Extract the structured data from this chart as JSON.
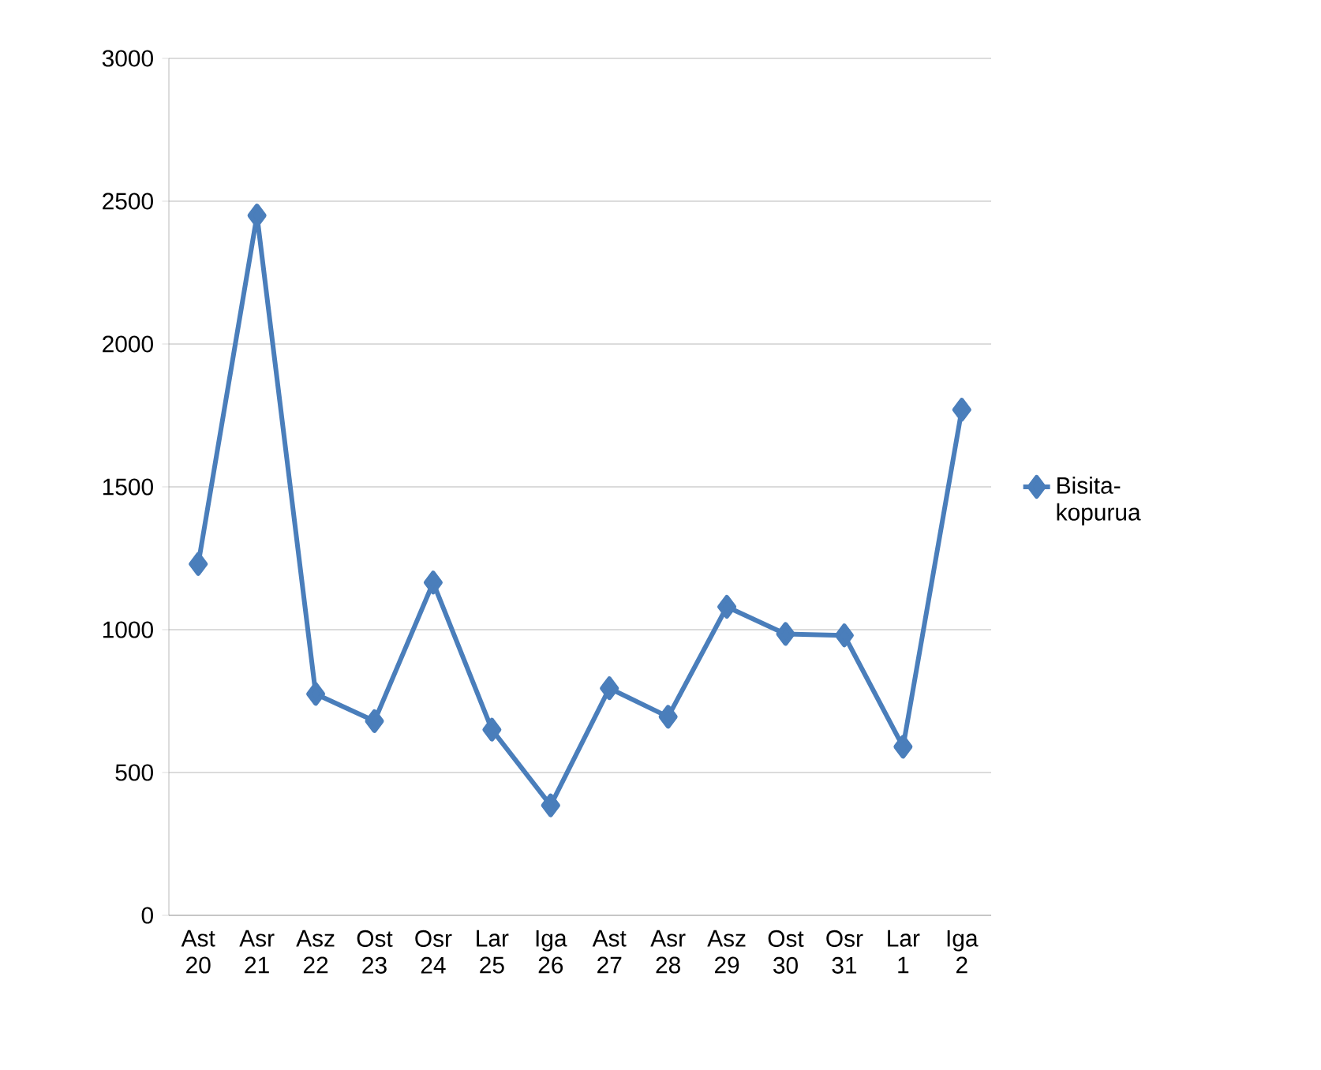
{
  "chart_data": {
    "type": "line",
    "categories": [
      "Ast 20",
      "Asr 21",
      "Asz 22",
      "Ost 23",
      "Osr 24",
      "Lar 25",
      "Iga 26",
      "Ast 27",
      "Asr 28",
      "Asz 29",
      "Ost 30",
      "Osr 31",
      "Lar 1",
      "Iga 2"
    ],
    "series": [
      {
        "name": "Bisita-kopurua",
        "color": "#4a7ebb",
        "values": [
          1230,
          2450,
          775,
          680,
          1165,
          650,
          385,
          795,
          695,
          1080,
          985,
          980,
          590,
          1770
        ]
      }
    ],
    "ylim": [
      0,
      3000
    ],
    "yticks": [
      0,
      500,
      1000,
      1500,
      2000,
      2500,
      3000
    ],
    "grid": "y",
    "legend": "right",
    "marker": "diamond",
    "line_style": "solid"
  }
}
